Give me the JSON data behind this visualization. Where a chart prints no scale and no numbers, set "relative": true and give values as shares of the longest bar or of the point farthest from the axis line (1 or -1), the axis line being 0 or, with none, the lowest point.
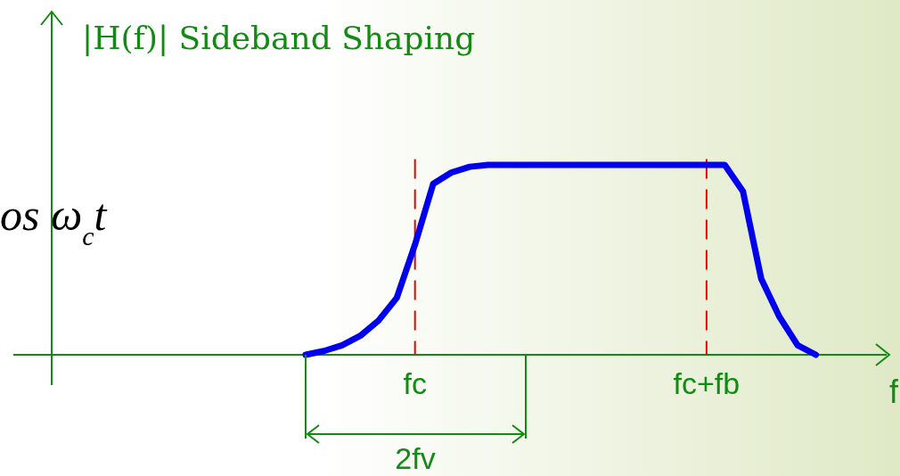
{
  "chart_data": {
    "type": "line",
    "title": "|H(f)| Sideband Shaping",
    "xlabel": "f",
    "relative": true,
    "categories": [
      null,
      null,
      null,
      null,
      null,
      null,
      null,
      null,
      null,
      null,
      null,
      null,
      null,
      null,
      null,
      null,
      null,
      null,
      null,
      null,
      "fc",
      null,
      null,
      null,
      null,
      null,
      null,
      null,
      null,
      null,
      null,
      null,
      null,
      null,
      null,
      null,
      "fc+fb",
      null,
      null,
      null,
      null,
      null,
      null,
      null,
      null,
      null,
      null
    ],
    "series": [
      {
        "color": "#0000ee",
        "values": [
          null,
          null,
          null,
          null,
          null,
          null,
          null,
          null,
          null,
          null,
          null,
          null,
          null,
          null,
          0,
          0.02,
          0.05,
          0.1,
          0.18,
          0.3,
          0.58,
          0.9,
          0.96,
          0.99,
          1,
          1,
          1,
          1,
          1,
          1,
          1,
          1,
          1,
          1,
          1,
          1,
          1,
          1,
          0.86,
          0.4,
          0.2,
          0.05,
          0,
          null,
          null,
          null,
          null
        ]
      }
    ],
    "ref_lines": [
      {
        "axis": "x",
        "value": "fc",
        "color": "#ee0000",
        "line_style": "dashed"
      },
      {
        "axis": "x",
        "value": "fc+fb",
        "color": "#ee0000",
        "line_style": "dashed"
      }
    ],
    "annotations": [
      "os ω$_{c}$t",
      "2fv"
    ]
  }
}
